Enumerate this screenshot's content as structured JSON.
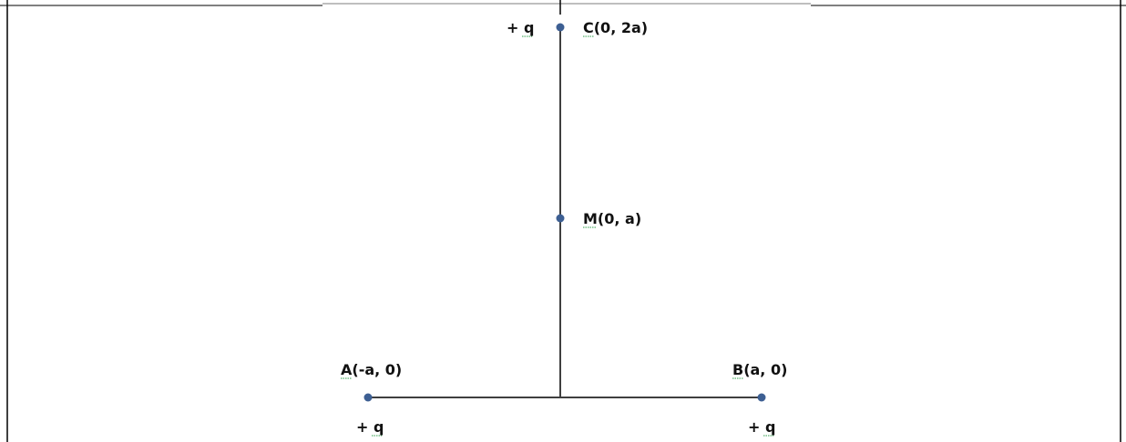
{
  "colors": {
    "line": "#3f3f3f",
    "point": "#3d5f93",
    "frame": "#000000",
    "spellcheck_underline": "#2e9e4a"
  },
  "points": {
    "C": {
      "label": "C(0, 2a)",
      "charge": "+ q"
    },
    "M": {
      "label": "M(0, a)"
    },
    "A": {
      "label": "A(-a, 0)",
      "charge": "+ q"
    },
    "B": {
      "label": "B(a, 0)",
      "charge": "+ q"
    }
  }
}
